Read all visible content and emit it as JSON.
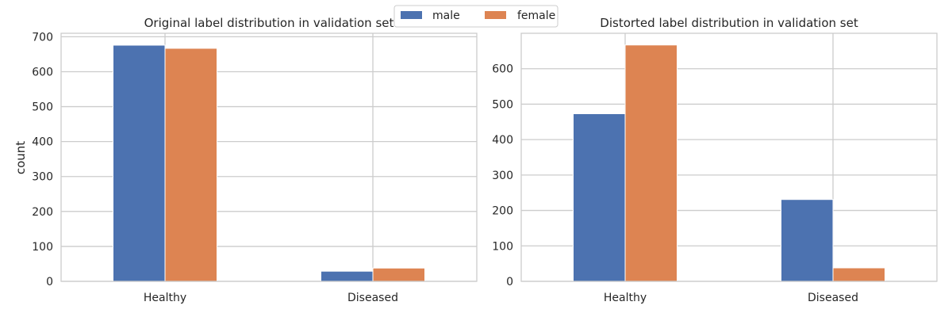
{
  "legend": {
    "items": [
      {
        "label": "male",
        "color": "#4C72B0"
      },
      {
        "label": "female",
        "color": "#DD8452"
      }
    ]
  },
  "chart_data": [
    {
      "type": "bar",
      "title": "Original label distribution in validation set",
      "ylabel": "count",
      "xlabel": "",
      "categories": [
        "Healthy",
        "Diseased"
      ],
      "series": [
        {
          "name": "male",
          "color": "#4C72B0",
          "values": [
            676,
            29
          ]
        },
        {
          "name": "female",
          "color": "#DD8452",
          "values": [
            667,
            38
          ]
        }
      ],
      "ylim": [
        0,
        710
      ],
      "yticks": [
        0,
        100,
        200,
        300,
        400,
        500,
        600,
        700
      ],
      "grid": true,
      "legend": "top-center"
    },
    {
      "type": "bar",
      "title": "Distorted label distribution in validation set",
      "ylabel": "",
      "xlabel": "",
      "categories": [
        "Healthy",
        "Diseased"
      ],
      "series": [
        {
          "name": "male",
          "color": "#4C72B0",
          "values": [
            473,
            231
          ]
        },
        {
          "name": "female",
          "color": "#DD8452",
          "values": [
            667,
            38
          ]
        }
      ],
      "ylim": [
        0,
        700
      ],
      "yticks": [
        0,
        100,
        200,
        300,
        400,
        500,
        600
      ],
      "grid": true,
      "legend": "top-center"
    }
  ]
}
